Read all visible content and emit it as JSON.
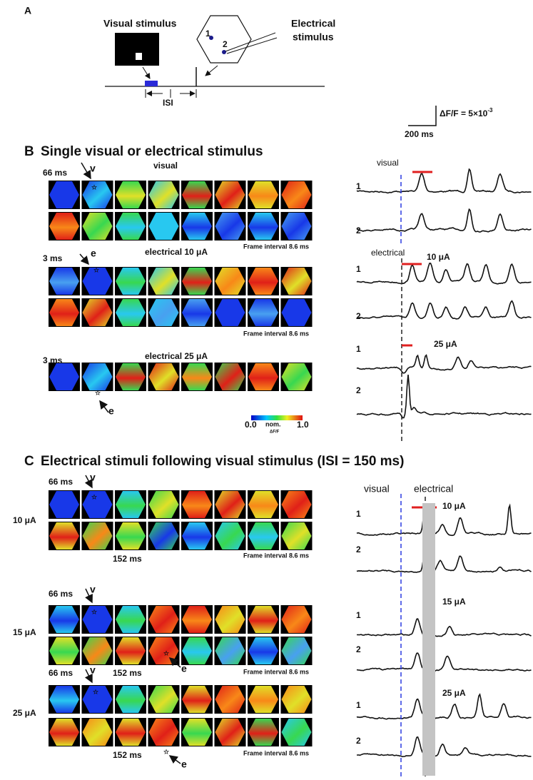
{
  "panel_a": {
    "label": "A",
    "visual_stimulus": "Visual stimulus",
    "electrical_stimulus": [
      "Electrical",
      "stimulus"
    ],
    "electrodes": [
      "1",
      "2"
    ],
    "isi": "ISI"
  },
  "scale_bar": {
    "dff": "ΔF/F = 5×10",
    "exponent": "-3",
    "time": "200 ms"
  },
  "panel_b": {
    "label": "B",
    "title": "Single visual or electrical stimulus",
    "groups": [
      {
        "time": "66 ms",
        "marker": "v",
        "title": "visual",
        "frame_interval": "Frame interval 8.6 ms"
      },
      {
        "time": "3 ms",
        "marker": "e",
        "title": "electrical 10 μA",
        "frame_interval": "Frame interval 8.6 ms"
      },
      {
        "time": "3 ms",
        "marker": "e",
        "title": "electrical 25 μA"
      }
    ],
    "colorbar": {
      "min": "0.0",
      "unit": [
        "nom.",
        "ΔF/F"
      ],
      "max": "1.0"
    },
    "traces": [
      {
        "condition": "visual",
        "rows": [
          "1",
          "2"
        ]
      },
      {
        "condition": "electrical",
        "amplitude": "10 μA",
        "rows": [
          "1",
          "2"
        ]
      },
      {
        "amplitude": "25 μA",
        "rows": [
          "1",
          "2"
        ]
      }
    ]
  },
  "panel_c": {
    "label": "C",
    "title": "Electrical stimuli following visual stimulus (ISI = 150 ms)",
    "groups": [
      {
        "current": "10 μA",
        "time": "66 ms",
        "marker_v": "v",
        "second_time": "152 ms",
        "frame_interval": "Frame interval 8.6 ms"
      },
      {
        "current": "15 μA",
        "time": "66 ms",
        "marker_v": "v",
        "second_time": "152 ms",
        "marker_e": "e",
        "frame_interval": "Frame interval 8.6 ms"
      },
      {
        "current": "25 μA",
        "time": "66 ms",
        "marker_v": "v",
        "second_time": "152 ms",
        "marker_e": "e",
        "frame_interval": "Frame interval 8.6 ms"
      }
    ],
    "traces": {
      "visual": "visual",
      "electrical": "electrical",
      "groups": [
        {
          "amplitude": "10 μA",
          "rows": [
            "1",
            "2"
          ]
        },
        {
          "amplitude": "15 μA",
          "rows": [
            "1",
            "2"
          ]
        },
        {
          "amplitude": "25 μA",
          "rows": [
            "1",
            "2"
          ]
        }
      ]
    }
  }
}
